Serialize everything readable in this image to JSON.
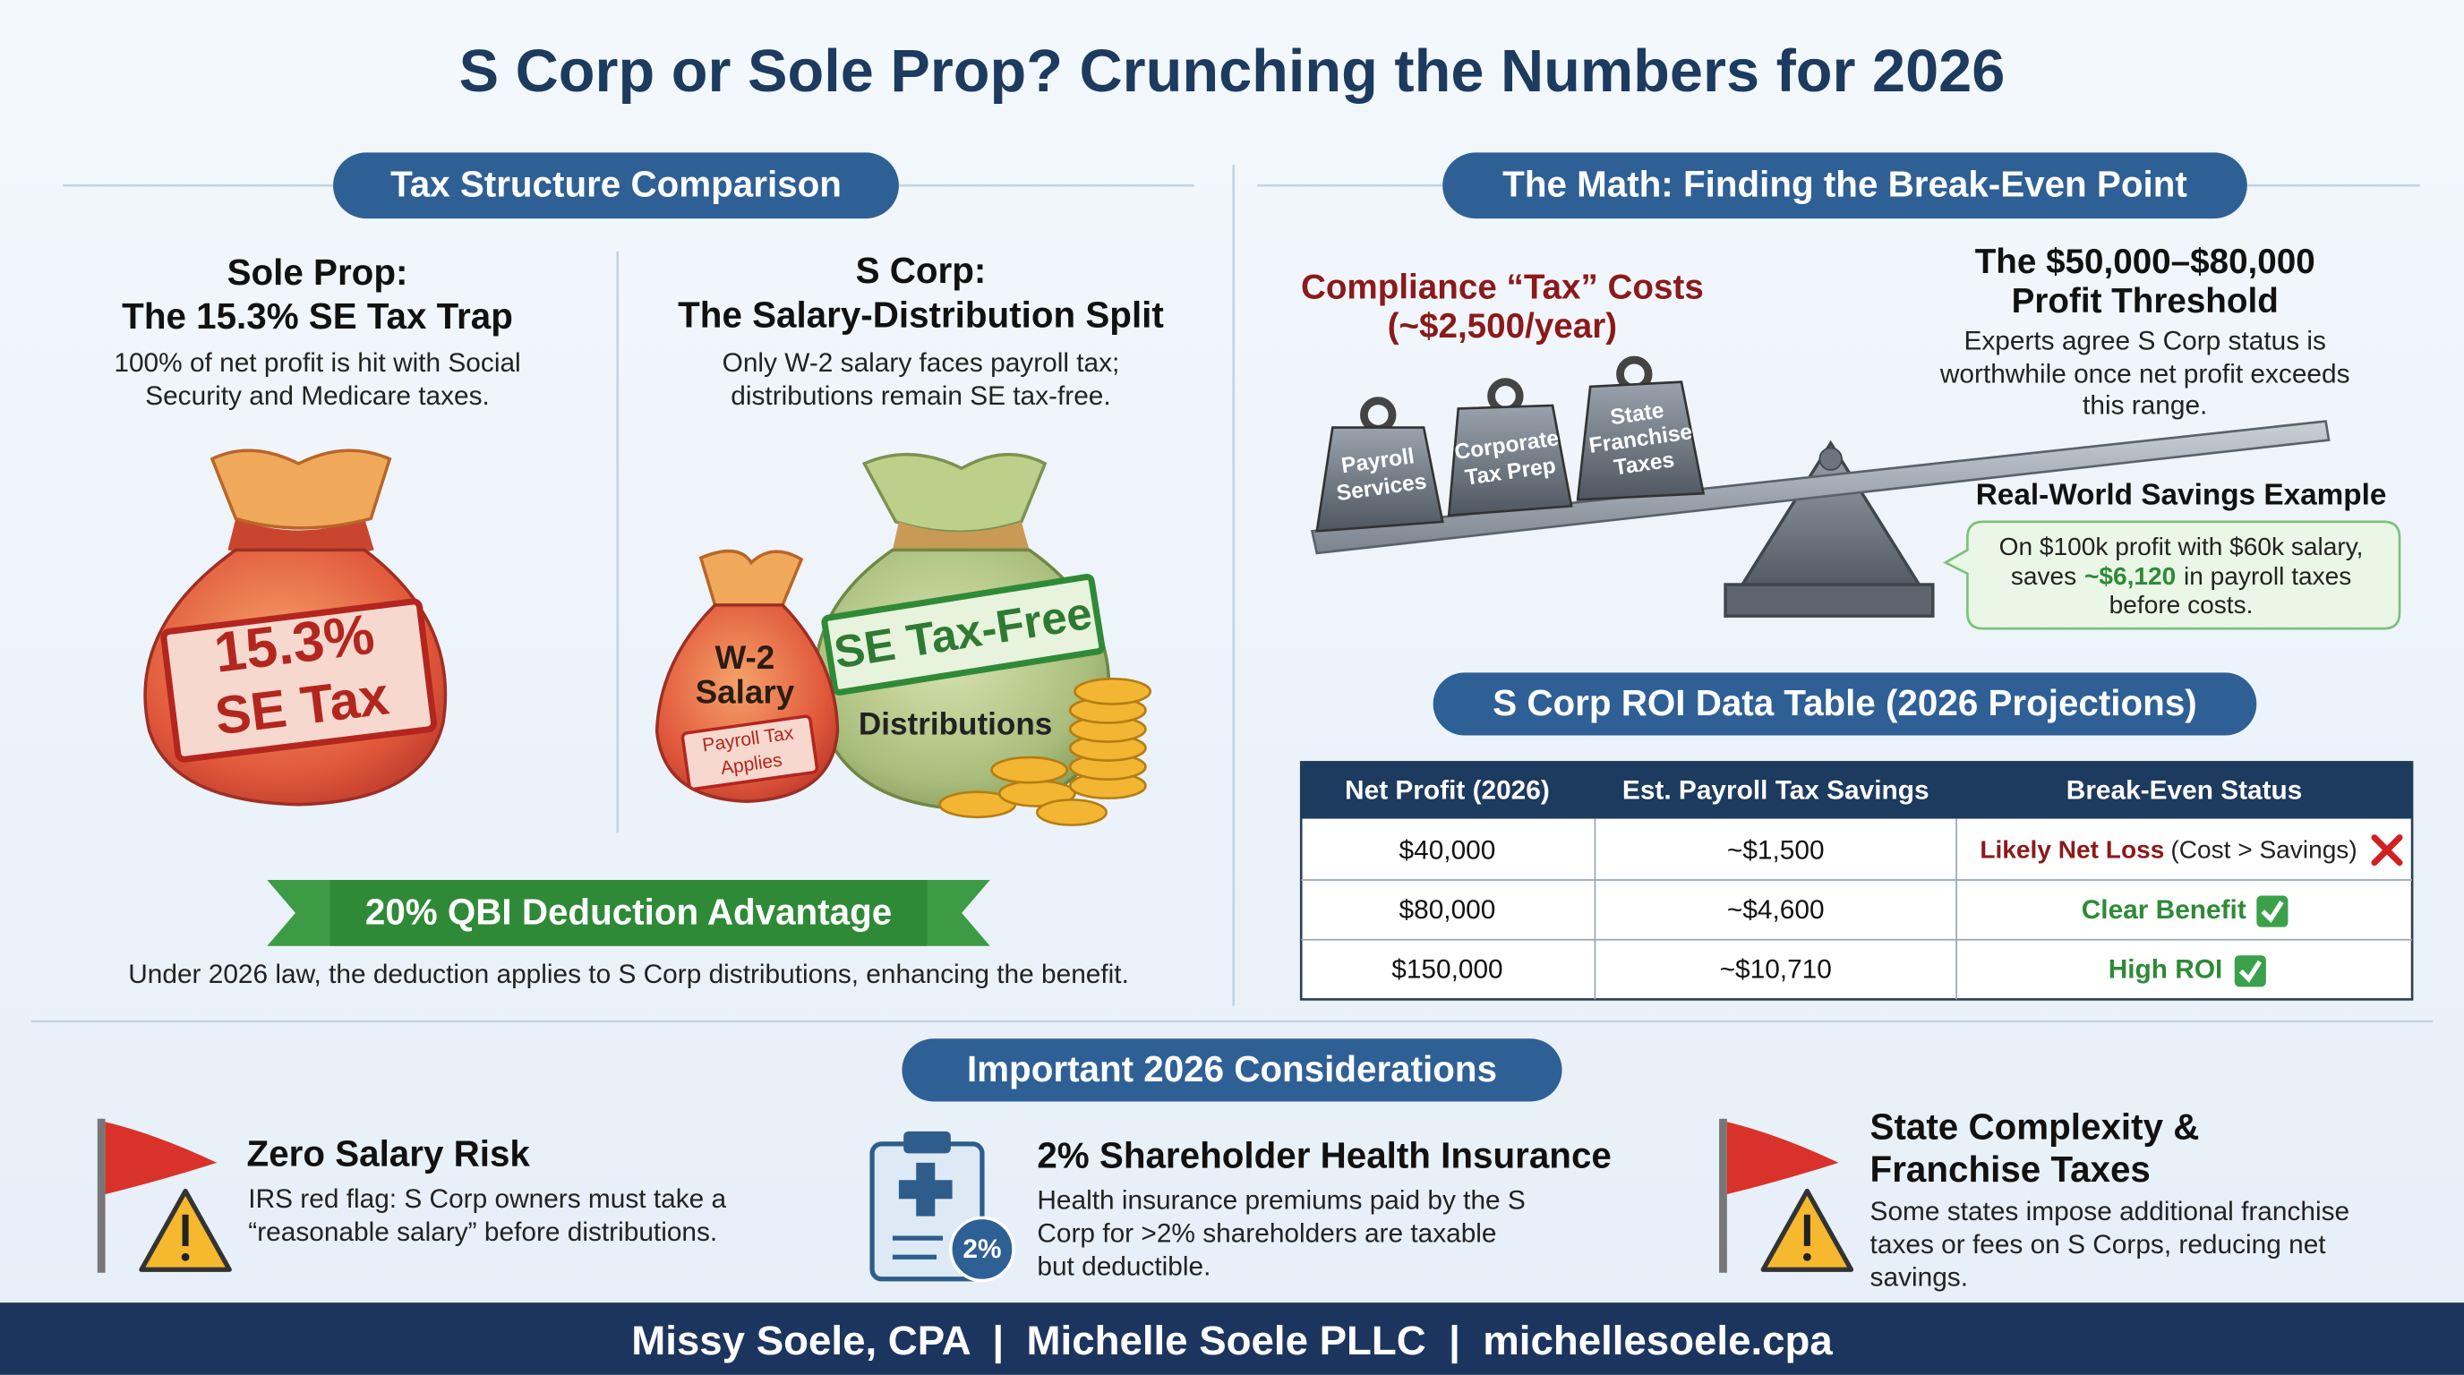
{
  "header": {
    "title": "S Corp or Sole Prop? Crunching the Numbers for 2026"
  },
  "comparison": {
    "heading": "Tax Structure Comparison",
    "sole_prop": {
      "title_lines": [
        "Sole Prop:",
        "The 15.3% SE Tax Trap"
      ],
      "description_lines": [
        "100% of net profit is hit with Social",
        "Security and Medicare taxes."
      ],
      "bag_label_lines": [
        "15.3%",
        "SE Tax"
      ]
    },
    "s_corp": {
      "title_lines": [
        "S Corp:",
        "The Salary-Distribution Split"
      ],
      "description_lines": [
        "Only W-2 salary faces payroll tax;",
        "distributions remain SE tax-free."
      ],
      "salary_bag_lines": [
        "W-2",
        "Salary"
      ],
      "salary_tag_lines": [
        "Payroll Tax",
        "Applies"
      ],
      "distribution_banner": "SE Tax-Free",
      "distribution_label": "Distributions"
    },
    "qbi": {
      "banner": "20% QBI Deduction Advantage",
      "note": "Under 2026 law, the deduction applies to S Corp distributions, enhancing the benefit."
    }
  },
  "break_even": {
    "heading": "The Math: Finding the Break-Even Point",
    "compliance_lines": [
      "Compliance “Tax” Costs",
      "(~$2,500/year)"
    ],
    "weights": [
      [
        "Payroll",
        "Services"
      ],
      [
        "Corporate",
        "Tax Prep"
      ],
      [
        "State",
        "Franchise",
        "Taxes"
      ]
    ],
    "threshold": {
      "title_lines": [
        "The $50,000–$80,000",
        "Profit Threshold"
      ],
      "description_lines": [
        "Experts agree S Corp status is",
        "worthwhile once net profit exceeds",
        "this range."
      ]
    },
    "example": {
      "title": "Real-World Savings Example",
      "first_line": "On $100k profit with $60k salary,",
      "savings_prefix": "saves",
      "savings_amount": "~$6,120",
      "savings_suffix": "in payroll taxes",
      "last_line": "before costs."
    }
  },
  "table": {
    "title": "S Corp ROI Data Table (2026 Projections)",
    "headers": [
      "Net Profit (2026)",
      "Est. Payroll Tax Savings",
      "Break-Even Status"
    ],
    "rows": [
      [
        "$40,000",
        "~$1,500",
        "Likely Net Loss",
        "(Cost > Savings)"
      ],
      [
        "$80,000",
        "~$4,600",
        "Clear Benefit"
      ],
      [
        "$150,000",
        "~$10,710",
        "High ROI"
      ]
    ]
  },
  "considerations": {
    "heading": "Important 2026 Considerations",
    "items": [
      {
        "title_lines": [
          "Zero Salary Risk"
        ],
        "description_lines": [
          "IRS red flag: S Corp owners must take a",
          "“reasonable salary” before distributions."
        ]
      },
      {
        "title_lines": [
          "2% Shareholder Health Insurance"
        ],
        "description_lines": [
          "Health insurance premiums paid by the S",
          "Corp for >2% shareholders are taxable",
          "but deductible."
        ],
        "badge": "2%"
      },
      {
        "title_lines": [
          "State Complexity &",
          "Franchise Taxes"
        ],
        "description_lines": [
          "Some states impose additional franchise",
          "taxes or fees on S Corps, reducing net",
          "savings."
        ]
      }
    ]
  },
  "footer": {
    "text": "Missy Soele, CPA  |  Michelle Soele PLLC  |  michellesoele.cpa"
  }
}
